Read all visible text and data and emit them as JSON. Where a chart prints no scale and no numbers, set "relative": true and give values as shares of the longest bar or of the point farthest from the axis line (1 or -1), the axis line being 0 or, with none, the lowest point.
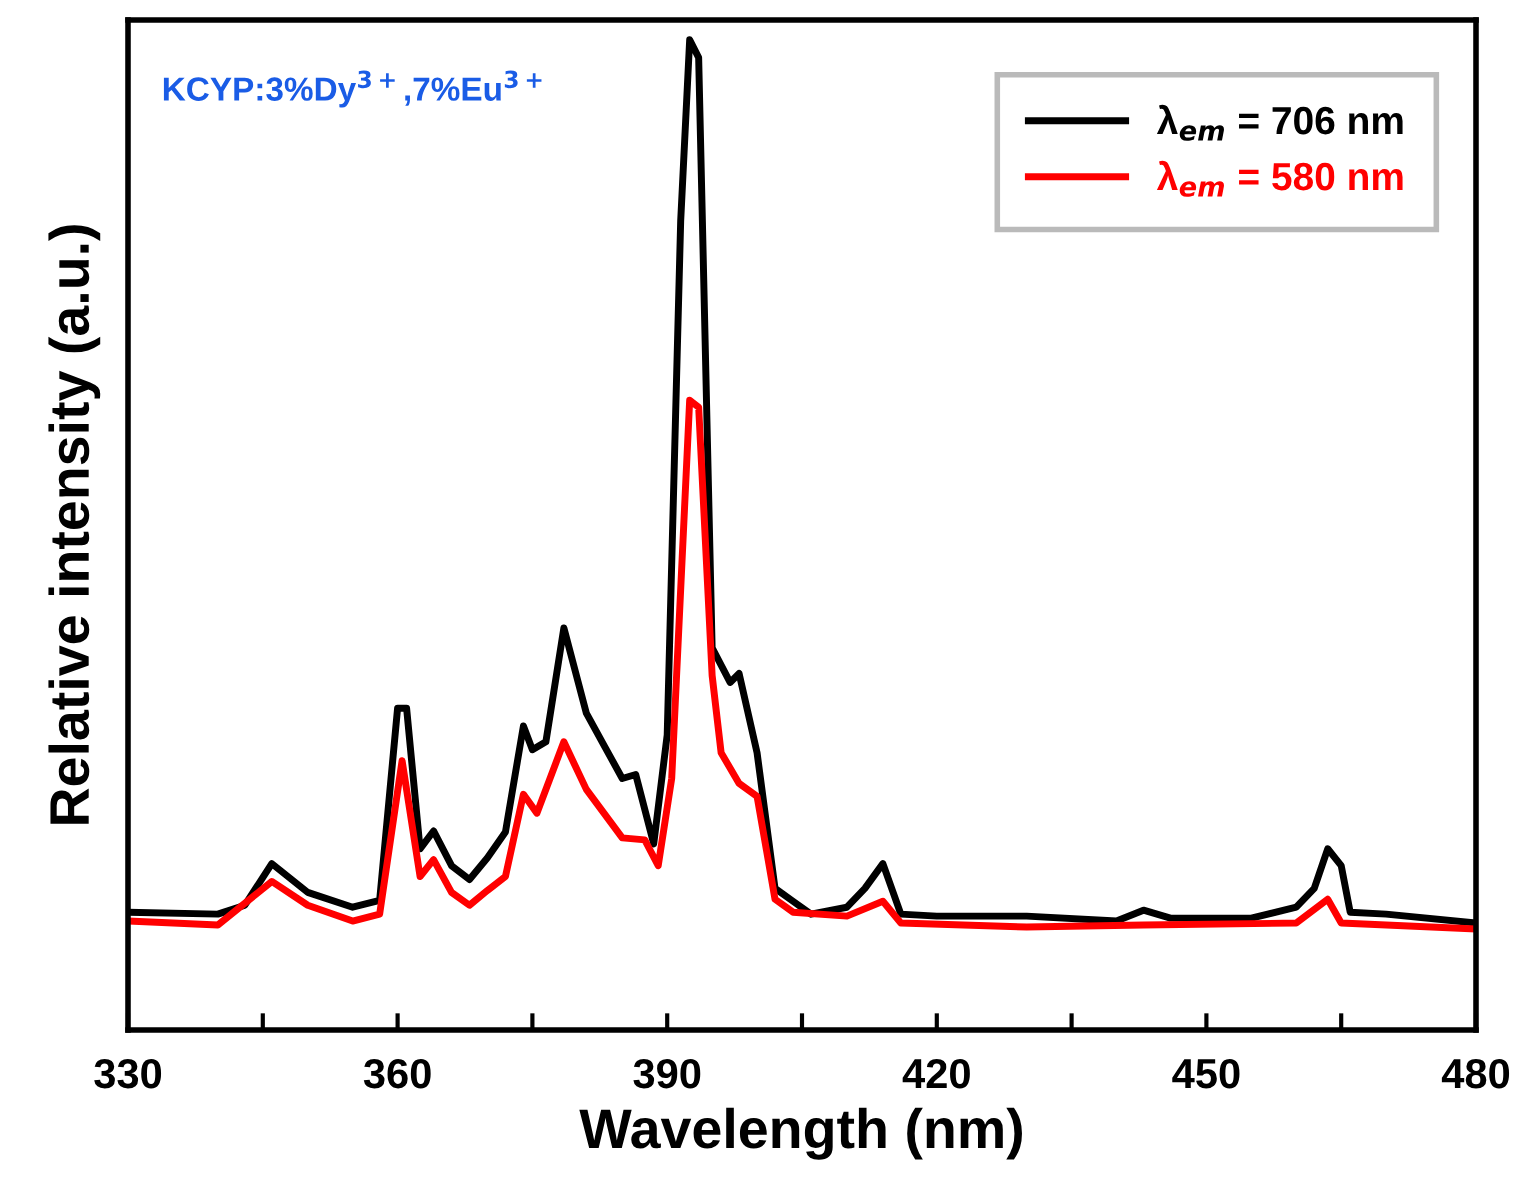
{
  "chart_data": {
    "type": "line",
    "relative": true,
    "xlabel": "Wavelength (nm)",
    "ylabel": "Relative intensity (a.u.)",
    "annotations": [
      "KCYP:3%Dy$^{3+}$,7%Eu$^{3+}$"
    ],
    "xlim": [
      330,
      480
    ],
    "xticks": [
      330,
      {
        "value": 345,
        "label": null
      },
      360,
      {
        "value": 375,
        "label": null
      },
      390,
      {
        "value": 405,
        "label": null
      },
      420,
      {
        "value": 435,
        "label": null
      },
      450,
      {
        "value": 465,
        "label": null
      },
      480
    ],
    "legend": "top right",
    "grid": false,
    "marker": "none",
    "line_style": "solid",
    "series": [
      {
        "name": "λ$_{em}$ = 706 nm",
        "color": "#000000",
        "x": [
          330,
          340,
          343,
          346,
          350,
          355,
          358,
          360,
          361,
          362.5,
          364,
          366,
          368,
          370,
          372,
          374,
          375,
          376.5,
          378.5,
          381,
          383,
          385,
          386.5,
          388.5,
          390,
          391.5,
          392.5,
          393.5,
          395,
          397,
          398,
          400,
          402,
          404,
          406,
          410,
          412,
          414,
          416,
          420,
          430,
          440,
          443,
          446,
          455,
          460,
          462,
          463.5,
          465,
          466,
          470,
          480
        ],
        "values": [
          0.119,
          0.117,
          0.126,
          0.168,
          0.139,
          0.124,
          0.131,
          0.325,
          0.325,
          0.183,
          0.201,
          0.166,
          0.152,
          0.174,
          0.2,
          0.307,
          0.283,
          0.291,
          0.406,
          0.32,
          0.287,
          0.254,
          0.258,
          0.188,
          0.298,
          0.817,
          1.0,
          0.982,
          0.386,
          0.351,
          0.36,
          0.28,
          0.143,
          0.13,
          0.117,
          0.124,
          0.143,
          0.168,
          0.117,
          0.115,
          0.115,
          0.11,
          0.121,
          0.113,
          0.113,
          0.124,
          0.143,
          0.183,
          0.166,
          0.119,
          0.117,
          0.108
        ]
      },
      {
        "name": "λ$_{em}$ = 580 nm",
        "color": "#ff0000",
        "x": [
          330,
          340,
          346,
          350,
          355,
          358,
          360.5,
          362.5,
          364,
          366,
          368,
          370,
          372,
          374,
          375.5,
          378.5,
          381,
          385,
          387.5,
          389,
          390.5,
          392.5,
          393.5,
          395,
          396,
          398,
          400,
          402,
          404,
          410,
          414,
          416,
          430,
          443,
          460,
          463.5,
          465,
          480
        ],
        "values": [
          0.11,
          0.106,
          0.15,
          0.126,
          0.11,
          0.117,
          0.272,
          0.155,
          0.172,
          0.139,
          0.126,
          0.141,
          0.155,
          0.238,
          0.219,
          0.291,
          0.243,
          0.194,
          0.192,
          0.166,
          0.254,
          0.636,
          0.629,
          0.358,
          0.28,
          0.249,
          0.236,
          0.132,
          0.119,
          0.115,
          0.13,
          0.108,
          0.104,
          0.106,
          0.108,
          0.132,
          0.108,
          0.102
        ]
      }
    ]
  }
}
